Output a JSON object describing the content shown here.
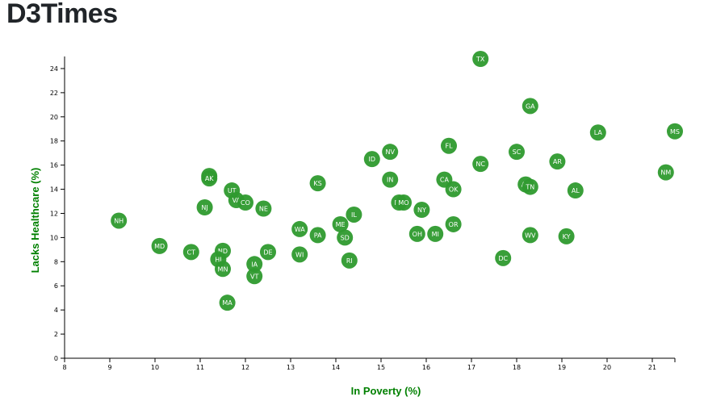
{
  "page": {
    "title": "D3Times"
  },
  "colors": {
    "marker": "#2e9a2e",
    "axis_title": "#008000",
    "axis": "#000000",
    "label": "#ffffff"
  },
  "chart_data": {
    "type": "scatter",
    "title": "",
    "xlabel": "In Poverty (%)",
    "ylabel": "Lacks Healthcare (%)",
    "xlim": [
      8,
      21.5
    ],
    "ylim": [
      0,
      25
    ],
    "x_ticks": [
      8,
      9,
      10,
      11,
      12,
      13,
      14,
      15,
      16,
      17,
      18,
      19,
      20,
      21
    ],
    "y_ticks": [
      0,
      2,
      4,
      6,
      8,
      10,
      12,
      14,
      16,
      18,
      20,
      22,
      24
    ],
    "grid": false,
    "points": [
      {
        "label": "TX",
        "x": 17.2,
        "y": 24.8
      },
      {
        "label": "GA",
        "x": 18.3,
        "y": 20.9
      },
      {
        "label": "LA",
        "x": 19.8,
        "y": 18.7
      },
      {
        "label": "MS",
        "x": 21.5,
        "y": 18.8
      },
      {
        "label": "FL",
        "x": 16.5,
        "y": 17.6
      },
      {
        "label": "SC",
        "x": 18.0,
        "y": 17.1
      },
      {
        "label": "NV",
        "x": 15.2,
        "y": 17.1
      },
      {
        "label": "ID",
        "x": 14.8,
        "y": 16.5
      },
      {
        "label": "AR",
        "x": 18.9,
        "y": 16.3
      },
      {
        "label": "NC",
        "x": 17.2,
        "y": 16.1
      },
      {
        "label": "NM",
        "x": 21.3,
        "y": 15.4
      },
      {
        "label": "WY",
        "x": 11.2,
        "y": 15.1
      },
      {
        "label": "AK",
        "x": 11.2,
        "y": 14.9
      },
      {
        "label": "IN",
        "x": 15.2,
        "y": 14.8
      },
      {
        "label": "CA",
        "x": 16.4,
        "y": 14.8
      },
      {
        "label": "KS",
        "x": 13.6,
        "y": 14.5
      },
      {
        "label": "AZ",
        "x": 18.2,
        "y": 14.4
      },
      {
        "label": "TN",
        "x": 18.3,
        "y": 14.2
      },
      {
        "label": "OK",
        "x": 16.6,
        "y": 14.0
      },
      {
        "label": "AL",
        "x": 19.3,
        "y": 13.9
      },
      {
        "label": "UT",
        "x": 11.7,
        "y": 13.9
      },
      {
        "label": "VA",
        "x": 11.8,
        "y": 13.1
      },
      {
        "label": "CO",
        "x": 12.0,
        "y": 12.9
      },
      {
        "label": "MT",
        "x": 15.4,
        "y": 12.9
      },
      {
        "label": "MO",
        "x": 15.5,
        "y": 12.9
      },
      {
        "label": "NJ",
        "x": 11.1,
        "y": 12.5
      },
      {
        "label": "NE",
        "x": 12.4,
        "y": 12.4
      },
      {
        "label": "NY",
        "x": 15.9,
        "y": 12.3
      },
      {
        "label": "IL",
        "x": 14.4,
        "y": 11.9
      },
      {
        "label": "NH",
        "x": 9.2,
        "y": 11.4
      },
      {
        "label": "OR",
        "x": 16.6,
        "y": 11.1
      },
      {
        "label": "ME",
        "x": 14.1,
        "y": 11.1
      },
      {
        "label": "WA",
        "x": 13.2,
        "y": 10.7
      },
      {
        "label": "OH",
        "x": 15.8,
        "y": 10.3
      },
      {
        "label": "MI",
        "x": 16.2,
        "y": 10.3
      },
      {
        "label": "WV",
        "x": 18.3,
        "y": 10.2
      },
      {
        "label": "PA",
        "x": 13.6,
        "y": 10.2
      },
      {
        "label": "KY",
        "x": 19.1,
        "y": 10.1
      },
      {
        "label": "SD",
        "x": 14.2,
        "y": 10.0
      },
      {
        "label": "MD",
        "x": 10.1,
        "y": 9.3
      },
      {
        "label": "ND",
        "x": 11.5,
        "y": 8.9
      },
      {
        "label": "CT",
        "x": 10.8,
        "y": 8.8
      },
      {
        "label": "DE",
        "x": 12.5,
        "y": 8.8
      },
      {
        "label": "WI",
        "x": 13.2,
        "y": 8.6
      },
      {
        "label": "DC",
        "x": 17.7,
        "y": 8.3
      },
      {
        "label": "HI",
        "x": 11.4,
        "y": 8.2
      },
      {
        "label": "RI",
        "x": 14.3,
        "y": 8.1
      },
      {
        "label": "IA",
        "x": 12.2,
        "y": 7.8
      },
      {
        "label": "MN",
        "x": 11.5,
        "y": 7.4
      },
      {
        "label": "VT",
        "x": 12.2,
        "y": 6.8
      },
      {
        "label": "MA",
        "x": 11.6,
        "y": 4.6
      }
    ]
  }
}
